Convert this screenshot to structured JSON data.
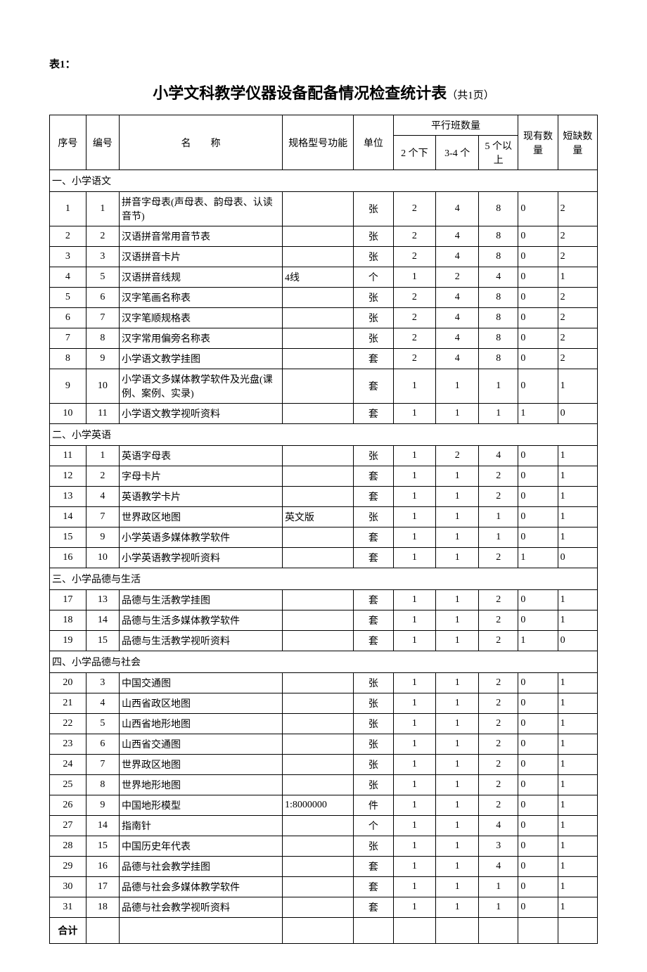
{
  "tableLabel": "表1：",
  "title": "小学文科教学仪器设备配备情况检查统计表",
  "titleSuffix": "（共1页）",
  "headers": {
    "seq": "序号",
    "code": "编号",
    "name": "名　　称",
    "spec": "规格型号功能",
    "unit": "单位",
    "parallelGroup": "平行班数量",
    "p1": "2 个下",
    "p2": "3-4 个",
    "p3": "5 个以上",
    "existing": "现有数量",
    "short": "短缺数量"
  },
  "sections": [
    {
      "title": "一、小学语文",
      "rows": [
        {
          "seq": "1",
          "code": "1",
          "name": "拼音字母表(声母表、韵母表、认读音节)",
          "spec": "",
          "unit": "张",
          "p1": "2",
          "p2": "4",
          "p3": "8",
          "ex": "0",
          "sh": "2"
        },
        {
          "seq": "2",
          "code": "2",
          "name": "汉语拼音常用音节表",
          "spec": "",
          "unit": "张",
          "p1": "2",
          "p2": "4",
          "p3": "8",
          "ex": "0",
          "sh": "2"
        },
        {
          "seq": "3",
          "code": "3",
          "name": "汉语拼音卡片",
          "spec": "",
          "unit": "张",
          "p1": "2",
          "p2": "4",
          "p3": "8",
          "ex": "0",
          "sh": "2"
        },
        {
          "seq": "4",
          "code": "5",
          "name": "汉语拼音线规",
          "spec": "4线",
          "unit": "个",
          "p1": "1",
          "p2": "2",
          "p3": "4",
          "ex": "0",
          "sh": "1"
        },
        {
          "seq": "5",
          "code": "6",
          "name": "汉字笔画名称表",
          "spec": "",
          "unit": "张",
          "p1": "2",
          "p2": "4",
          "p3": "8",
          "ex": "0",
          "sh": "2"
        },
        {
          "seq": "6",
          "code": "7",
          "name": "汉字笔顺规格表",
          "spec": "",
          "unit": "张",
          "p1": "2",
          "p2": "4",
          "p3": "8",
          "ex": "0",
          "sh": "2"
        },
        {
          "seq": "7",
          "code": "8",
          "name": "汉字常用偏旁名称表",
          "spec": "",
          "unit": "张",
          "p1": "2",
          "p2": "4",
          "p3": "8",
          "ex": "0",
          "sh": "2"
        },
        {
          "seq": "8",
          "code": "9",
          "name": "小学语文教学挂图",
          "spec": "",
          "unit": "套",
          "p1": "2",
          "p2": "4",
          "p3": "8",
          "ex": "0",
          "sh": "2"
        },
        {
          "seq": "9",
          "code": "10",
          "name": "小学语文多媒体教学软件及光盘(课例、案例、实录)",
          "spec": "",
          "unit": "套",
          "p1": "1",
          "p2": "1",
          "p3": "1",
          "ex": "0",
          "sh": "1"
        },
        {
          "seq": "10",
          "code": "11",
          "name": "小学语文教学视听资料",
          "spec": "",
          "unit": "套",
          "p1": "1",
          "p2": "1",
          "p3": "1",
          "ex": "1",
          "sh": "0"
        }
      ]
    },
    {
      "title": "二、小学英语",
      "rows": [
        {
          "seq": "11",
          "code": "1",
          "name": "英语字母表",
          "spec": "",
          "unit": "张",
          "p1": "1",
          "p2": "2",
          "p3": "4",
          "ex": "0",
          "sh": "1"
        },
        {
          "seq": "12",
          "code": "2",
          "name": "字母卡片",
          "spec": "",
          "unit": "套",
          "p1": "1",
          "p2": "1",
          "p3": "2",
          "ex": "0",
          "sh": "1"
        },
        {
          "seq": "13",
          "code": "4",
          "name": "英语教学卡片",
          "spec": "",
          "unit": "套",
          "p1": "1",
          "p2": "1",
          "p3": "2",
          "ex": "0",
          "sh": "1"
        },
        {
          "seq": "14",
          "code": "7",
          "name": "世界政区地图",
          "spec": "英文版",
          "unit": "张",
          "p1": "1",
          "p2": "1",
          "p3": "1",
          "ex": "0",
          "sh": "1"
        },
        {
          "seq": "15",
          "code": "9",
          "name": "小学英语多媒体教学软件",
          "spec": "",
          "unit": "套",
          "p1": "1",
          "p2": "1",
          "p3": "1",
          "ex": "0",
          "sh": "1"
        },
        {
          "seq": "16",
          "code": "10",
          "name": "小学英语教学视听资料",
          "spec": "",
          "unit": "套",
          "p1": "1",
          "p2": "1",
          "p3": "2",
          "ex": "1",
          "sh": "0"
        }
      ]
    },
    {
      "title": "三、小学品德与生活",
      "rows": [
        {
          "seq": "17",
          "code": "13",
          "name": "品德与生活教学挂图",
          "spec": "",
          "unit": "套",
          "p1": "1",
          "p2": "1",
          "p3": "2",
          "ex": "0",
          "sh": "1"
        },
        {
          "seq": "18",
          "code": "14",
          "name": "品德与生活多媒体教学软件",
          "spec": "",
          "unit": "套",
          "p1": "1",
          "p2": "1",
          "p3": "2",
          "ex": "0",
          "sh": "1"
        },
        {
          "seq": "19",
          "code": "15",
          "name": "品德与生活教学视听资料",
          "spec": "",
          "unit": "套",
          "p1": "1",
          "p2": "1",
          "p3": "2",
          "ex": "1",
          "sh": "0"
        }
      ]
    },
    {
      "title": "四、小学品德与社会",
      "rows": [
        {
          "seq": "20",
          "code": "3",
          "name": "中国交通图",
          "spec": "",
          "unit": "张",
          "p1": "1",
          "p2": "1",
          "p3": "2",
          "ex": "0",
          "sh": "1"
        },
        {
          "seq": "21",
          "code": "4",
          "name": "山西省政区地图",
          "spec": "",
          "unit": "张",
          "p1": "1",
          "p2": "1",
          "p3": "2",
          "ex": "0",
          "sh": "1"
        },
        {
          "seq": "22",
          "code": "5",
          "name": "山西省地形地图",
          "spec": "",
          "unit": "张",
          "p1": "1",
          "p2": "1",
          "p3": "2",
          "ex": "0",
          "sh": "1"
        },
        {
          "seq": "23",
          "code": "6",
          "name": "山西省交通图",
          "spec": "",
          "unit": "张",
          "p1": "1",
          "p2": "1",
          "p3": "2",
          "ex": "0",
          "sh": "1"
        },
        {
          "seq": "24",
          "code": "7",
          "name": "世界政区地图",
          "spec": "",
          "unit": "张",
          "p1": "1",
          "p2": "1",
          "p3": "2",
          "ex": "0",
          "sh": "1"
        },
        {
          "seq": "25",
          "code": "8",
          "name": "世界地形地图",
          "spec": "",
          "unit": "张",
          "p1": "1",
          "p2": "1",
          "p3": "2",
          "ex": "0",
          "sh": "1"
        },
        {
          "seq": "26",
          "code": "9",
          "name": "中国地形模型",
          "spec": "1:8000000",
          "unit": "件",
          "p1": "1",
          "p2": "1",
          "p3": "2",
          "ex": "0",
          "sh": "1"
        },
        {
          "seq": "27",
          "code": "14",
          "name": "指南针",
          "spec": "",
          "unit": "个",
          "p1": "1",
          "p2": "1",
          "p3": "4",
          "ex": "0",
          "sh": "1"
        },
        {
          "seq": "28",
          "code": "15",
          "name": "中国历史年代表",
          "spec": "",
          "unit": "张",
          "p1": "1",
          "p2": "1",
          "p3": "3",
          "ex": "0",
          "sh": "1"
        },
        {
          "seq": "29",
          "code": "16",
          "name": "品德与社会教学挂图",
          "spec": "",
          "unit": "套",
          "p1": "1",
          "p2": "1",
          "p3": "4",
          "ex": "0",
          "sh": "1"
        },
        {
          "seq": "30",
          "code": "17",
          "name": "品德与社会多媒体教学软件",
          "spec": "",
          "unit": "套",
          "p1": "1",
          "p2": "1",
          "p3": "1",
          "ex": "0",
          "sh": "1"
        },
        {
          "seq": "31",
          "code": "18",
          "name": "品德与社会教学视听资料",
          "spec": "",
          "unit": "套",
          "p1": "1",
          "p2": "1",
          "p3": "1",
          "ex": "0",
          "sh": "1"
        }
      ]
    }
  ],
  "footer": "合计",
  "colWidths": {
    "seq": "46px",
    "code": "42px",
    "name": "206px",
    "spec": "90px",
    "unit": "50px",
    "p1": "54px",
    "p2": "54px",
    "p3": "50px",
    "ex": "50px",
    "sh": "50px"
  }
}
